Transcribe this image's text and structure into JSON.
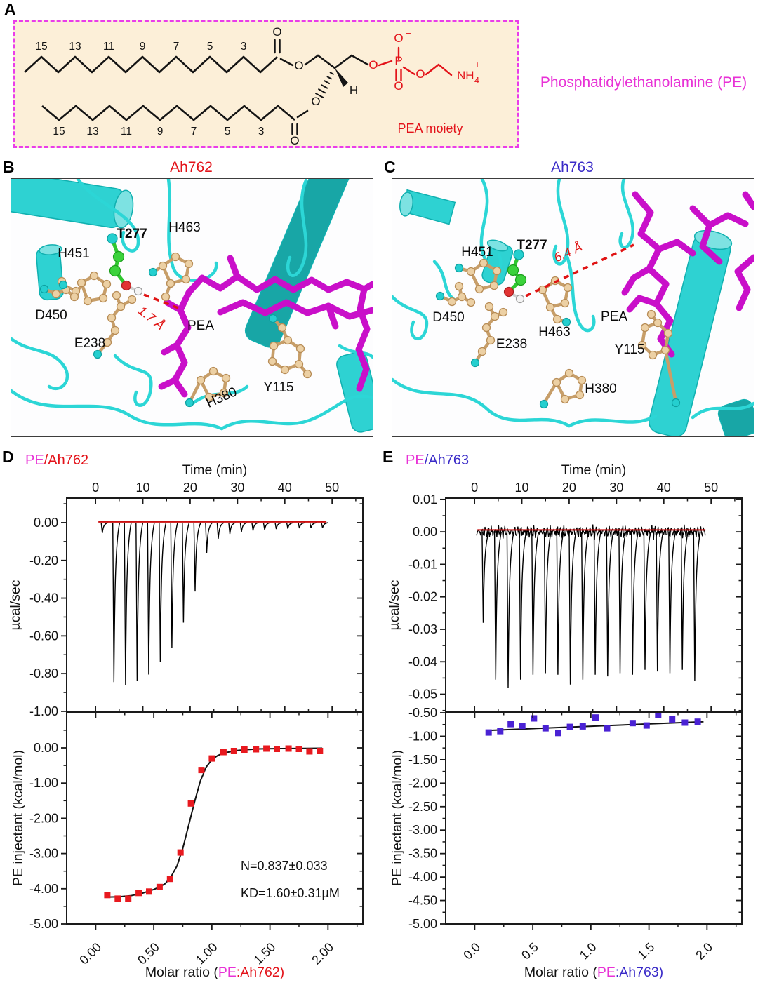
{
  "panelA": {
    "label": "A",
    "right_label": "Phosphatidylethanolamine (PE)",
    "right_label_color": "#e832d6",
    "moiety_label": "PEA moiety",
    "box_bg": "#fcefd8",
    "box_border": "#ea3cea",
    "red": "#e31219",
    "black": "#141414",
    "chain_numbers_top": [
      "15",
      "13",
      "11",
      "9",
      "7",
      "5",
      "3"
    ],
    "chain_numbers_bottom": [
      "15",
      "13",
      "11",
      "9",
      "7",
      "5",
      "3"
    ],
    "atoms": {
      "oxygen": "O",
      "phosphorus": "P",
      "minus": "−",
      "nh": "NH",
      "sub4": "4",
      "plus": "+",
      "hydrogen": "H"
    }
  },
  "panelB": {
    "label": "B",
    "title": "Ah762",
    "title_color": "#e31219",
    "residues": [
      "H451",
      "T277",
      "H463",
      "D450",
      "E238",
      "H380",
      "Y115"
    ],
    "ligand_label": "PEA",
    "distance_label": "1.7 Å"
  },
  "panelC": {
    "label": "C",
    "title": "Ah763",
    "title_color": "#3a2bc8",
    "residues": [
      "H451",
      "T277",
      "H463",
      "D450",
      "E238",
      "H380",
      "Y115"
    ],
    "ligand_label": "PEA",
    "distance_label": "6.4 Å"
  },
  "panelD": {
    "label": "D",
    "title_parts": [
      {
        "text": "PE",
        "color": "#e832d6"
      },
      {
        "text": "/Ah762",
        "color": "#e31219"
      }
    ]
  },
  "panelE": {
    "label": "E",
    "title_parts": [
      {
        "text": "PE",
        "color": "#e832d6"
      },
      {
        "text": "/Ah763",
        "color": "#3a2bc8"
      }
    ]
  },
  "chart_data": [
    {
      "id": "ah762_thermogram",
      "type": "line",
      "panel": "D",
      "xlabel": "Time (min)",
      "ylabel": "µcal/sec",
      "xlim": [
        -6.1,
        56.5
      ],
      "ylim": [
        0.13,
        -1.004
      ],
      "xticks": [
        0,
        10,
        20,
        30,
        40,
        50
      ],
      "xtick_labels": [
        "0",
        "10",
        "20",
        "30",
        "40",
        "50"
      ],
      "xminor": [
        5,
        15,
        25,
        35,
        45,
        55
      ],
      "yticks": [
        0,
        -0.2,
        -0.4,
        -0.6,
        -0.8,
        -1.0
      ],
      "ytick_labels": [
        "0.00",
        "-0.20",
        "-0.40",
        "-0.60",
        "-0.80",
        "-1.00"
      ],
      "baseline_value": 0.004,
      "noise_amp": 0,
      "injection_start_min": 1.4,
      "injection_interval_min": 2.45,
      "injection_depths": [
        -0.055,
        -0.845,
        -0.86,
        -0.84,
        -0.805,
        -0.74,
        -0.665,
        -0.53,
        -0.365,
        -0.16,
        -0.085,
        -0.06,
        -0.05,
        -0.042,
        -0.038,
        -0.034,
        -0.032,
        -0.03,
        -0.029,
        -0.028
      ],
      "trace_color": "#000000",
      "baseline_color": "#cc1111"
    },
    {
      "id": "ah762_isotherm",
      "type": "scatter",
      "panel": "D",
      "xlabel_parts": [
        {
          "text": "Molar ratio (",
          "color": "#111111"
        },
        {
          "text": "PE",
          "color": "#e832d6"
        },
        {
          "text": ":Ah762)",
          "color": "#e31219"
        }
      ],
      "ylabel": "PE injectant (kcal/mol)",
      "xlim": [
        -0.25,
        2.3
      ],
      "ylim": [
        1.016,
        -5.0
      ],
      "xticks": [
        0,
        0.5,
        1,
        1.5,
        2
      ],
      "xtick_labels": [
        "0.00",
        "0.50",
        "1.00",
        "1.50",
        "2.00"
      ],
      "xminor": [
        0.25,
        0.75,
        1.25,
        1.75,
        2.25
      ],
      "yticks": [
        0,
        -1,
        -2,
        -3,
        -4,
        -5
      ],
      "ytick_labels": [
        "0.00",
        "-1.00",
        "-2.00",
        "-3.00",
        "-4.00",
        "-5.00"
      ],
      "marker_color": "#e8191f",
      "points": [
        [
          0.1,
          -4.18
        ],
        [
          0.19,
          -4.28
        ],
        [
          0.28,
          -4.28
        ],
        [
          0.37,
          -4.12
        ],
        [
          0.46,
          -4.08
        ],
        [
          0.55,
          -3.95
        ],
        [
          0.64,
          -3.72
        ],
        [
          0.73,
          -2.97
        ],
        [
          0.82,
          -1.58
        ],
        [
          0.91,
          -0.63
        ],
        [
          1.0,
          -0.3
        ],
        [
          1.1,
          -0.12
        ],
        [
          1.19,
          -0.09
        ],
        [
          1.28,
          -0.05
        ],
        [
          1.38,
          -0.04
        ],
        [
          1.47,
          -0.02
        ],
        [
          1.56,
          -0.03
        ],
        [
          1.66,
          -0.02
        ],
        [
          1.75,
          -0.03
        ],
        [
          1.84,
          -0.1
        ],
        [
          1.93,
          -0.09
        ]
      ],
      "fit_curve": [
        [
          0.08,
          -4.24
        ],
        [
          0.2,
          -4.23
        ],
        [
          0.3,
          -4.2
        ],
        [
          0.4,
          -4.13
        ],
        [
          0.5,
          -4.02
        ],
        [
          0.55,
          -3.95
        ],
        [
          0.6,
          -3.85
        ],
        [
          0.65,
          -3.65
        ],
        [
          0.7,
          -3.35
        ],
        [
          0.75,
          -2.85
        ],
        [
          0.8,
          -2.2
        ],
        [
          0.85,
          -1.55
        ],
        [
          0.9,
          -0.95
        ],
        [
          0.95,
          -0.55
        ],
        [
          1.0,
          -0.33
        ],
        [
          1.05,
          -0.22
        ],
        [
          1.1,
          -0.15
        ],
        [
          1.2,
          -0.08
        ],
        [
          1.3,
          -0.05
        ],
        [
          1.4,
          -0.03
        ],
        [
          1.6,
          -0.02
        ],
        [
          1.8,
          -0.015
        ],
        [
          1.95,
          -0.01
        ]
      ],
      "annotations": [
        "N=0.837±0.033",
        "KD=1.60±0.31µM"
      ]
    },
    {
      "id": "ah763_thermogram",
      "type": "line",
      "panel": "E",
      "xlabel": "Time (min)",
      "ylabel": "µcal/sec",
      "xlim": [
        -6.1,
        56.5
      ],
      "ylim": [
        0.0104,
        -0.0555
      ],
      "xticks": [
        0,
        10,
        20,
        30,
        40,
        50
      ],
      "xtick_labels": [
        "0",
        "10",
        "20",
        "30",
        "40",
        "50"
      ],
      "xminor": [
        5,
        15,
        25,
        35,
        45,
        55
      ],
      "yticks": [
        0.01,
        0,
        -0.01,
        -0.02,
        -0.03,
        -0.04,
        -0.05
      ],
      "ytick_labels": [
        "0.01",
        "0.00",
        "-0.01",
        "-0.02",
        "-0.03",
        "-0.04",
        "-0.05"
      ],
      "baseline_value": 0.0006,
      "noise_amp": 0.00095,
      "injection_start_min": 1.8,
      "injection_interval_min": 2.63,
      "injection_depths": [
        -0.028,
        -0.0455,
        -0.048,
        -0.0455,
        -0.044,
        -0.0435,
        -0.044,
        -0.047,
        -0.0455,
        -0.044,
        -0.0445,
        -0.0435,
        -0.044,
        -0.0425,
        -0.043,
        -0.0435,
        -0.0425,
        -0.046
      ],
      "trace_color": "#000000",
      "baseline_color": "#cc1111"
    },
    {
      "id": "ah763_isotherm",
      "type": "scatter",
      "panel": "E",
      "xlabel_parts": [
        {
          "text": "Molar ratio (",
          "color": "#111111"
        },
        {
          "text": "PE",
          "color": "#e832d6"
        },
        {
          "text": ":Ah763)",
          "color": "#3a2bc8"
        }
      ],
      "ylabel": "PE injectant (kcal/mol)",
      "xlim": [
        -0.25,
        2.3
      ],
      "ylim": [
        -0.485,
        -5.0
      ],
      "xticks": [
        0,
        0.5,
        1,
        1.5,
        2
      ],
      "xtick_labels": [
        "0.0",
        "0.5",
        "1.0",
        "1.5",
        "2.0"
      ],
      "xminor": [
        0.25,
        0.75,
        1.25,
        1.75,
        2.25
      ],
      "yticks": [
        -0.5,
        -1,
        -1.5,
        -2,
        -2.5,
        -3,
        -3.5,
        -4,
        -4.5,
        -5
      ],
      "ytick_labels": [
        "-0.50",
        "-1.00",
        "-1.50",
        "-2.00",
        "-2.50",
        "-3.00",
        "-3.50",
        "-4.00",
        "-4.50",
        "-5.00"
      ],
      "marker_color": "#4a22d4",
      "points": [
        [
          0.12,
          -0.92
        ],
        [
          0.22,
          -0.89
        ],
        [
          0.31,
          -0.74
        ],
        [
          0.41,
          -0.78
        ],
        [
          0.51,
          -0.62
        ],
        [
          0.61,
          -0.83
        ],
        [
          0.72,
          -0.93
        ],
        [
          0.82,
          -0.8
        ],
        [
          0.93,
          -0.79
        ],
        [
          1.04,
          -0.6
        ],
        [
          1.14,
          -0.83
        ],
        [
          1.36,
          -0.72
        ],
        [
          1.48,
          -0.77
        ],
        [
          1.58,
          -0.55
        ],
        [
          1.7,
          -0.64
        ],
        [
          1.81,
          -0.71
        ],
        [
          1.92,
          -0.69
        ]
      ],
      "fit_curve": [
        [
          0.12,
          -0.875
        ],
        [
          1.97,
          -0.69
        ]
      ],
      "annotations": []
    }
  ]
}
